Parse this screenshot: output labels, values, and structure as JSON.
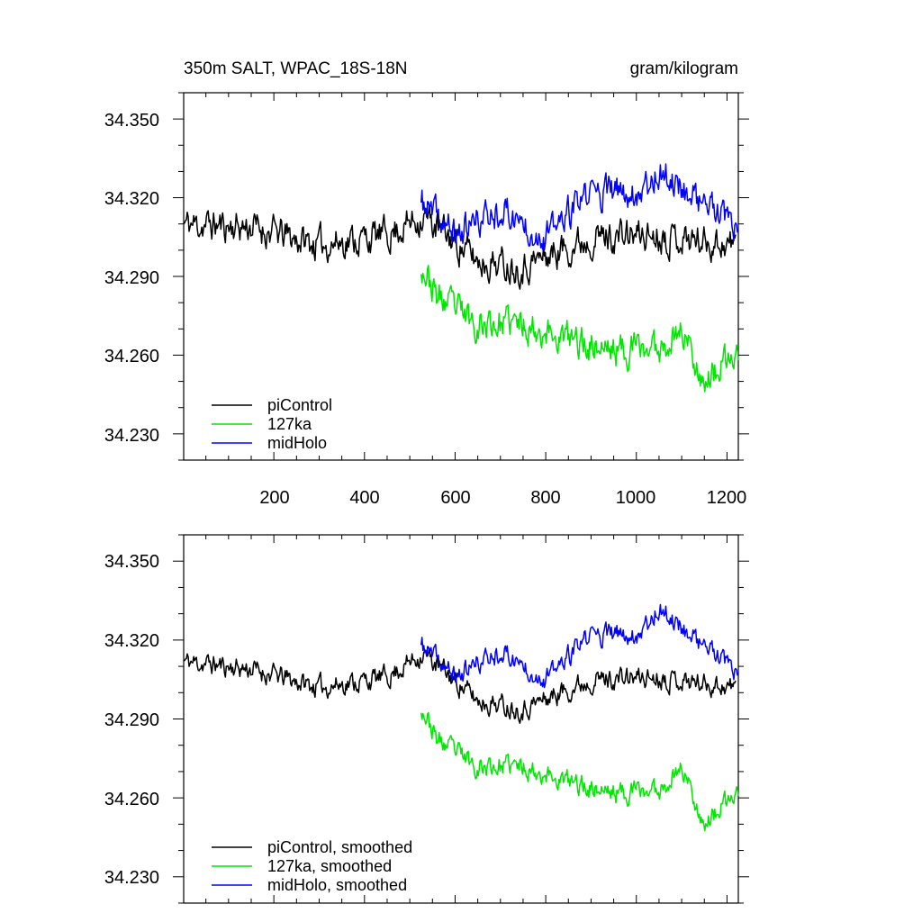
{
  "chart_data": [
    {
      "type": "line",
      "title": "350m SALT, WPAC_18S-18N",
      "units": "gram/kilogram",
      "xlabel": "",
      "ylabel": "",
      "xlim": [
        1,
        1225
      ],
      "ylim": [
        34.22,
        34.36
      ],
      "xticks": [
        200,
        400,
        600,
        800,
        1000,
        1200
      ],
      "xtick_labels": [
        "200",
        "400",
        "600",
        "800",
        "1000",
        "1200"
      ],
      "yticks": [
        34.35,
        34.32,
        34.29,
        34.26,
        34.23
      ],
      "ytick_labels": [
        "34.350",
        "34.320",
        "34.290",
        "34.260",
        "34.230"
      ],
      "legend_position": "bottom-left",
      "series": [
        {
          "name": "piControl",
          "color": "#000000",
          "x_start": 1,
          "x_end": 1220,
          "mean": 34.306,
          "noise": 0.0085,
          "seed": 11,
          "trend_points": [
            [
              1,
              34.31
            ],
            [
              150,
              34.309
            ],
            [
              300,
              34.302
            ],
            [
              450,
              34.306
            ],
            [
              530,
              34.313
            ],
            [
              650,
              34.296
            ],
            [
              750,
              34.294
            ],
            [
              900,
              34.305
            ],
            [
              1050,
              34.306
            ],
            [
              1220,
              34.302
            ]
          ]
        },
        {
          "name": "127ka",
          "color": "#00e600",
          "x_start": 525,
          "x_end": 1225,
          "noise": 0.0085,
          "seed": 23,
          "trend_points": [
            [
              525,
              34.295
            ],
            [
              560,
              34.282
            ],
            [
              650,
              34.272
            ],
            [
              750,
              34.272
            ],
            [
              850,
              34.266
            ],
            [
              950,
              34.262
            ],
            [
              1050,
              34.263
            ],
            [
              1100,
              34.27
            ],
            [
              1150,
              34.25
            ],
            [
              1225,
              34.26
            ]
          ]
        },
        {
          "name": "midHolo",
          "color": "#0000ff",
          "x_start": 525,
          "x_end": 1225,
          "noise": 0.0085,
          "seed": 37,
          "trend_points": [
            [
              525,
              34.318
            ],
            [
              600,
              34.306
            ],
            [
              700,
              34.316
            ],
            [
              800,
              34.305
            ],
            [
              900,
              34.322
            ],
            [
              1000,
              34.322
            ],
            [
              1050,
              34.33
            ],
            [
              1150,
              34.318
            ],
            [
              1225,
              34.306
            ]
          ]
        }
      ]
    },
    {
      "type": "line",
      "title": "",
      "xlabel": "",
      "ylabel": "",
      "xlim": [
        1,
        1225
      ],
      "ylim": [
        34.22,
        34.36
      ],
      "xticks": [
        200,
        400,
        600,
        800,
        1000,
        1200
      ],
      "yticks": [
        34.35,
        34.32,
        34.29,
        34.26,
        34.23
      ],
      "ytick_labels": [
        "34.350",
        "34.320",
        "34.290",
        "34.260",
        "34.230"
      ],
      "legend_position": "bottom-left",
      "series": [
        {
          "name": "piControl, smoothed",
          "color": "#000000",
          "x_start": 1,
          "x_end": 1220,
          "noise": 0.0055,
          "seed": 11,
          "trend_points": [
            [
              1,
              34.312
            ],
            [
              150,
              34.309
            ],
            [
              300,
              34.302
            ],
            [
              450,
              34.306
            ],
            [
              530,
              34.315
            ],
            [
              650,
              34.297
            ],
            [
              750,
              34.294
            ],
            [
              900,
              34.305
            ],
            [
              1050,
              34.306
            ],
            [
              1220,
              34.302
            ]
          ]
        },
        {
          "name": "127ka, smoothed",
          "color": "#00e600",
          "x_start": 525,
          "x_end": 1225,
          "noise": 0.0055,
          "seed": 23,
          "trend_points": [
            [
              525,
              34.295
            ],
            [
              560,
              34.282
            ],
            [
              650,
              34.272
            ],
            [
              750,
              34.272
            ],
            [
              850,
              34.266
            ],
            [
              950,
              34.262
            ],
            [
              1050,
              34.263
            ],
            [
              1100,
              34.272
            ],
            [
              1150,
              34.25
            ],
            [
              1225,
              34.262
            ]
          ]
        },
        {
          "name": "midHolo, smoothed",
          "color": "#0000ff",
          "x_start": 525,
          "x_end": 1225,
          "noise": 0.0055,
          "seed": 37,
          "trend_points": [
            [
              525,
              34.318
            ],
            [
              600,
              34.306
            ],
            [
              700,
              34.316
            ],
            [
              800,
              34.305
            ],
            [
              900,
              34.322
            ],
            [
              1000,
              34.322
            ],
            [
              1050,
              34.332
            ],
            [
              1150,
              34.318
            ],
            [
              1225,
              34.306
            ]
          ]
        }
      ]
    }
  ]
}
